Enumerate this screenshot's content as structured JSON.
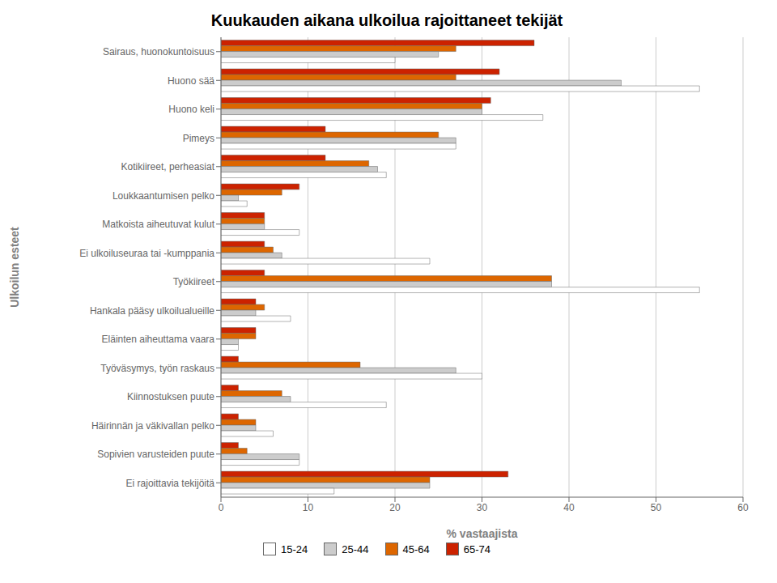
{
  "chart_data": {
    "type": "bar",
    "orientation": "horizontal",
    "title": "Kuukauden aikana ulkoilua rajoittaneet tekijät",
    "xlabel": "% vastaajista",
    "ylabel": "Ulkoilun esteet",
    "categories": [
      "Sairaus, huonokuntoisuus",
      "Huono sää",
      "Huono keli",
      "Pimeys",
      "Kotikiireet, perheasiat",
      "Loukkaantumisen pelko",
      "Matkoista aiheutuvat kulut",
      "Ei ulkoiluseuraa tai -kumppania",
      "Työkiireet",
      "Hankala pääsy ulkoilualueille",
      "Eläinten aiheuttama vaara",
      "Työväsymys, työn raskaus",
      "Kiinnostuksen puute",
      "Häirinnän ja väkivallan pelko",
      "Sopivien varusteiden puute",
      "Ei rajoittavia tekijöitä"
    ],
    "series": [
      {
        "name": "15-24",
        "color": "#ffffff",
        "values": [
          20,
          55,
          37,
          27,
          19,
          3,
          9,
          24,
          55,
          8,
          2,
          30,
          19,
          6,
          9,
          13
        ]
      },
      {
        "name": "25-44",
        "color": "#cccccc",
        "values": [
          25,
          46,
          30,
          27,
          18,
          2,
          5,
          7,
          38,
          4,
          2,
          27,
          8,
          4,
          9,
          24
        ]
      },
      {
        "name": "45-64",
        "color": "#dd6600",
        "values": [
          27,
          27,
          30,
          25,
          17,
          7,
          5,
          6,
          38,
          5,
          4,
          16,
          7,
          4,
          3,
          24
        ]
      },
      {
        "name": "65-74",
        "color": "#cc2200",
        "values": [
          36,
          32,
          31,
          12,
          12,
          9,
          5,
          5,
          5,
          4,
          4,
          2,
          2,
          2,
          2,
          33
        ]
      }
    ],
    "xlim": [
      0,
      60
    ],
    "xticks": [
      0,
      10,
      20,
      30,
      40,
      50,
      60
    ],
    "grid": true,
    "legend": "bottom"
  }
}
